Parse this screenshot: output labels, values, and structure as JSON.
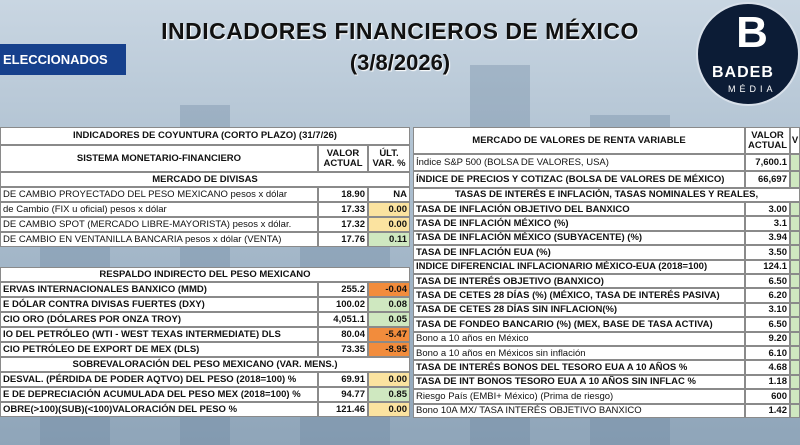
{
  "header": {
    "title": "INDICADORES FINANCIEROS DE MÉXICO",
    "date": "(3/8/2026)",
    "tab": "ELECCIONADOS"
  },
  "logo": {
    "mark": "B",
    "name": "BADEB",
    "sub": "MÉDIA"
  },
  "left_table": {
    "title": "INDICADORES DE COYUNTURA (CORTO PLAZO) (31/7/26)",
    "header": {
      "label": "SISTEMA MONETARIO-FINANCIERO",
      "value": "VALOR ACTUAL",
      "change": "ÚLT. VAR. %"
    },
    "sections": [
      {
        "heading": "MERCADO DE DIVISAS",
        "rows": [
          {
            "label": "DE CAMBIO PROYECTADO DEL PESO MEXICANO pesos x dólar",
            "value": "18.90",
            "change": "NA"
          },
          {
            "label": "de Cambio (FIX u oficial) pesos x dólar",
            "value": "17.33",
            "change": "0.00",
            "color": "#fbe3a0"
          },
          {
            "label": "DE CAMBIO SPOT (MERCADO LIBRE-MAYORISTA) pesos x dólar.",
            "value": "17.32",
            "change": "0.00",
            "color": "#fbe3a0"
          },
          {
            "label": "DE CAMBIO EN VENTANILLA BANCARIA pesos x dólar (VENTA)",
            "value": "17.76",
            "change": "0.11",
            "color": "#cfe8c0"
          }
        ]
      },
      {
        "heading": "RESPALDO INDIRECTO DEL PESO MEXICANO",
        "rows": [
          {
            "label": "ERVAS INTERNACIONALES BANXICO (MMD)",
            "value": "255.2",
            "change": "-0.04",
            "color": "#f28c3c"
          },
          {
            "label": "E DÓLAR CONTRA DIVISAS FUERTES (DXY)",
            "value": "100.02",
            "change": "0.08",
            "color": "#cfe8c0"
          },
          {
            "label": "CIO ORO (DÓLARES POR ONZA TROY)",
            "value": "4,051.1",
            "change": "0.05",
            "color": "#cfe8c0"
          },
          {
            "label": "IO DEL PETRÓLEO (WTI - WEST TEXAS INTERMEDIATE) DLS",
            "value": "80.04",
            "change": "-5.47",
            "color": "#f28c3c"
          },
          {
            "label": "CIO PETRÓLEO DE EXPORT DE MEX (DLS)",
            "value": "73.35",
            "change": "-8.95",
            "color": "#f28c3c"
          }
        ]
      },
      {
        "heading": "SOBREVALORACIÓN DEL PESO MEXICANO (VAR. MENS.)",
        "rows": [
          {
            "label": "DESVAL. (PÉRDIDA DE PODER AQTVO) DEL PESO (2018=100) %",
            "value": "69.91",
            "change": "0.00",
            "color": "#fbe3a0"
          },
          {
            "label": "E DE DEPRECIACIÓN ACUMULADA DEL PESO MEX (2018=100) %",
            "value": "94.77",
            "change": "0.85",
            "color": "#cfe8c0"
          },
          {
            "label": "OBRE(>100)(SUB)(<100)VALORACIÓN DEL PESO  %",
            "value": "121.46",
            "change": "0.00",
            "color": "#fbe3a0"
          }
        ]
      }
    ]
  },
  "right_table": {
    "header": {
      "label": "MERCADO DE VALORES DE RENTA VARIABLE",
      "value": "VALOR ACTUAL",
      "change": "V"
    },
    "sections": [
      {
        "rows": [
          {
            "label": "Índice S&P 500 (BOLSA DE VALORES, USA)",
            "value": "7,600.1"
          },
          {
            "label": "ÍNDICE DE PRECIOS Y COTIZAC (BOLSA DE VALORES DE MÉXICO)",
            "value": "66,697"
          }
        ]
      },
      {
        "heading": "TASAS DE INTERÉS E INFLACIÓN, TASAS NOMINALES Y REALES,",
        "rows": [
          {
            "label": "TASA DE INFLACIÓN OBJETIVO DEL BANXICO",
            "value": "3.00"
          },
          {
            "label": "TASA DE INFLACIÓN MÉXICO (%)",
            "value": "3.1"
          },
          {
            "label": "TASA DE INFLACIÓN MÉXICO (SUBYACENTE) (%)",
            "value": "3.94"
          },
          {
            "label": "TASA DE INFLACIÓN EUA (%)",
            "value": "3.50"
          },
          {
            "label": "INDICE DIFERENCIAL INFLACIONARIO MÉXICO-EUA (2018=100)",
            "value": "124.1"
          },
          {
            "label": "TASA DE INTERÉS OBJETIVO (BANXICO)",
            "value": "6.50"
          },
          {
            "label": "TASA DE CETES 28 DÍAS (%) (MÉXICO, TASA DE INTERÉS PASIVA)",
            "value": "6.20"
          },
          {
            "label": "TASA DE CETES 28 DÍAS SIN INFLACION(%)",
            "value": "3.10"
          },
          {
            "label": "TASA DE FONDEO BANCARIO (%) (MEX, BASE DE TASA ACTIVA)",
            "value": "6.50"
          },
          {
            "label": "Bono a 10 años en México",
            "value": "9.20"
          },
          {
            "label": "Bono a 10 años en Méxicos sin inflación",
            "value": "6.10"
          },
          {
            "label": "TASA DE INTERÉS BONOS DEL TESORO EUA A 10 AÑOS %",
            "value": "4.68"
          },
          {
            "label": "TASA DE INT BONOS TESORO EUA A 10 AÑOS SIN INFLAC %",
            "value": "1.18"
          },
          {
            "label": "Riesgo País (EMBI+ México) (Prima de riesgo)",
            "value": "600"
          },
          {
            "label": "Bono 10A MX/ TASA INTERÉS OBJETIVO BANXICO",
            "value": "1.42"
          }
        ]
      }
    ]
  }
}
